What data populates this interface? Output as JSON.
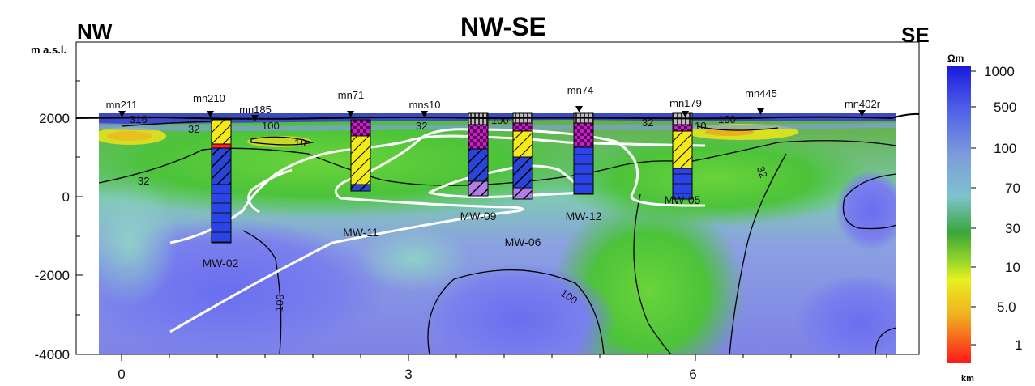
{
  "title": "NW-SE",
  "left_label": "NW",
  "right_label": "SE",
  "y_axis_label": "m a.s.l.",
  "x_axis_label": "km",
  "colorbar": {
    "unit": "Ωm",
    "ticks": [
      "1000",
      "500",
      "100",
      "70",
      "30",
      "10",
      "5.0",
      "1"
    ]
  },
  "chart_data": {
    "type": "heatmap",
    "xlabel": "km",
    "ylabel": "m a.s.l.",
    "xlim": [
      -0.25,
      8
    ],
    "ylim": [
      -4000,
      2100
    ],
    "x_ticks": [
      "0",
      "3",
      "6"
    ],
    "y_ticks": [
      "2000",
      "0",
      "-2000",
      "-4000"
    ],
    "stations": [
      {
        "name": "mn211",
        "x": 0.0
      },
      {
        "name": "mn210",
        "x": 0.95
      },
      {
        "name": "mn185",
        "x": 1.4
      },
      {
        "name": "mn71",
        "x": 2.4
      },
      {
        "name": "mns10",
        "x": 3.2
      },
      {
        "name": "mn74",
        "x": 4.8
      },
      {
        "name": "mn179",
        "x": 5.95
      },
      {
        "name": "mn445",
        "x": 6.75
      },
      {
        "name": "mn402r",
        "x": 7.8
      }
    ],
    "wells": [
      {
        "name": "MW-02",
        "x": 1.03
      },
      {
        "name": "MW-11",
        "x": 2.5
      },
      {
        "name": "MW-09",
        "x": 3.75
      },
      {
        "name": "MW-06",
        "x": 4.2
      },
      {
        "name": "MW-12",
        "x": 4.8
      },
      {
        "name": "MW-05",
        "x": 5.95
      }
    ],
    "contour_labels": [
      "316",
      "32",
      "100",
      "32",
      "10",
      "32",
      "100",
      "32",
      "100",
      "10",
      "32",
      "100",
      "100",
      "100"
    ]
  }
}
